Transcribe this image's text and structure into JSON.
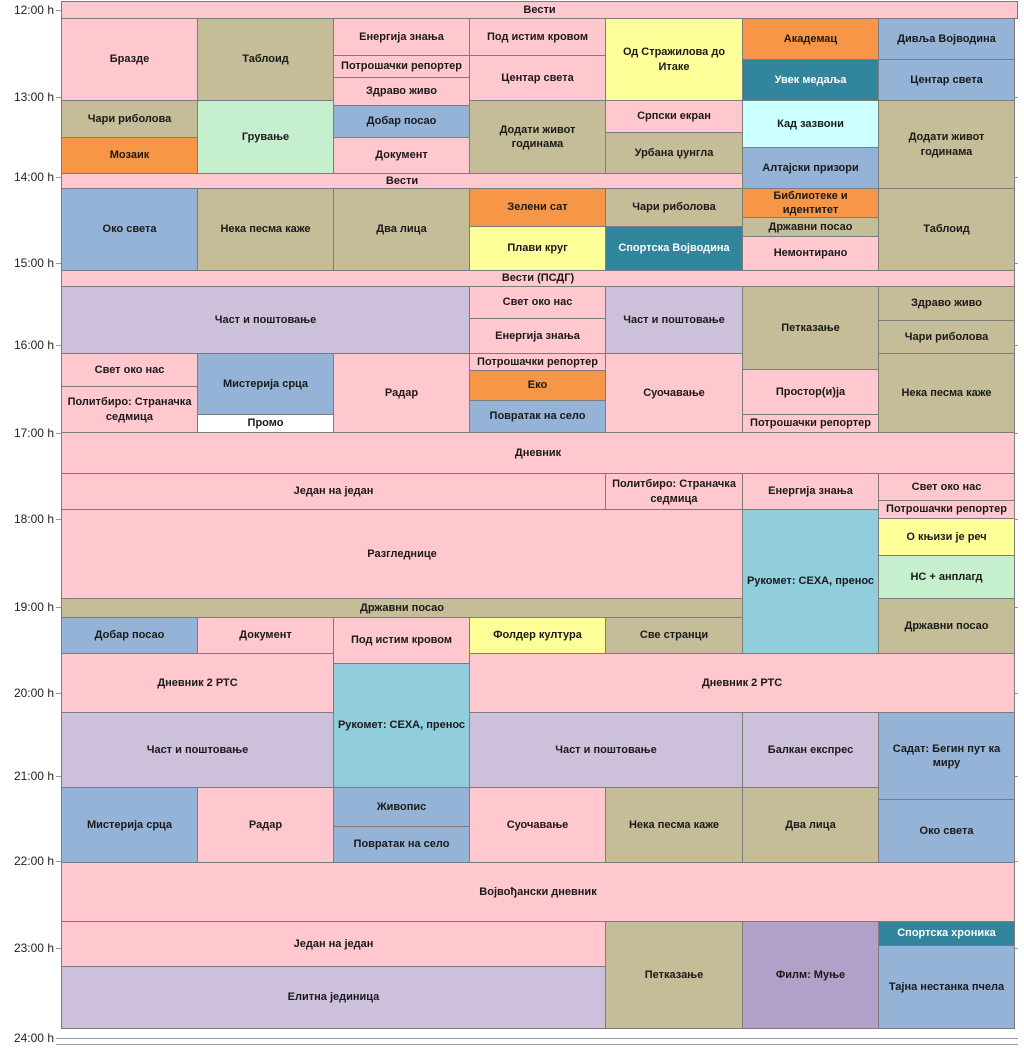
{
  "time_labels": [
    "12:00 h",
    "13:00 h",
    "14:00 h",
    "15:00 h",
    "16:00 h",
    "17:00 h",
    "18:00 h",
    "19:00 h",
    "20:00 h",
    "21:00 h",
    "22:00 h",
    "23:00 h",
    "24:00 h"
  ],
  "colors": {
    "pink": "#ffc7ce",
    "khaki": "#c4bd97",
    "blue": "#95b3d7",
    "orange": "#f79646",
    "yellow": "#ffff99",
    "teal": "#31859c",
    "lavender": "#ccc0da",
    "mint": "#c6efce",
    "light_cyan": "#ccffff",
    "cyan": "#92cddc",
    "purple": "#b1a0c7",
    "white": "#ffffff"
  },
  "programs": [
    {
      "title": "Вести",
      "color": "pink"
    },
    {
      "title": "Бразде",
      "color": "pink"
    },
    {
      "title": "Таблоид",
      "color": "khaki"
    },
    {
      "title": "Енергија знања",
      "color": "pink"
    },
    {
      "title": "Потрошачки репортер",
      "color": "pink"
    },
    {
      "title": "Здраво живо",
      "color": "pink"
    },
    {
      "title": "Под истим кровом",
      "color": "pink"
    },
    {
      "title": "Центар света",
      "color": "pink"
    },
    {
      "title": "Од Стражилова до Итаке",
      "color": "yellow"
    },
    {
      "title": "Академац",
      "color": "orange"
    },
    {
      "title": "Увек медаља",
      "color": "teal"
    },
    {
      "title": "Дивља Војводина",
      "color": "blue"
    },
    {
      "title": "Центар света",
      "color": "blue"
    },
    {
      "title": "Чари риболова",
      "color": "khaki"
    },
    {
      "title": "Мозаик",
      "color": "orange"
    },
    {
      "title": "Грување",
      "color": "mint"
    },
    {
      "title": "Добар посао",
      "color": "blue"
    },
    {
      "title": "Документ",
      "color": "pink"
    },
    {
      "title": "Додати живот годинама",
      "color": "khaki"
    },
    {
      "title": "Српски екран",
      "color": "pink"
    },
    {
      "title": "Урбана џунгла",
      "color": "khaki"
    },
    {
      "title": "Кад зазвони",
      "color": "light_cyan"
    },
    {
      "title": "Алтајски призори",
      "color": "blue"
    },
    {
      "title": "Додати живот годинама",
      "color": "khaki"
    },
    {
      "title": "Вести",
      "color": "pink"
    },
    {
      "title": "Око света",
      "color": "blue"
    },
    {
      "title": "Нека песма каже",
      "color": "khaki"
    },
    {
      "title": "Два лица",
      "color": "khaki"
    },
    {
      "title": "Зелени сат",
      "color": "orange"
    },
    {
      "title": "Плави круг",
      "color": "yellow"
    },
    {
      "title": "Чари риболова",
      "color": "khaki"
    },
    {
      "title": "Спортска Војводина",
      "color": "teal"
    },
    {
      "title": "Библиотеке и идентитет",
      "color": "orange"
    },
    {
      "title": "Државни посао",
      "color": "khaki"
    },
    {
      "title": "Немонтирано",
      "color": "pink"
    },
    {
      "title": "Таблоид",
      "color": "khaki"
    },
    {
      "title": "Вести (ПСДГ)",
      "color": "pink"
    },
    {
      "title": "Част и поштовање",
      "color": "lavender"
    },
    {
      "title": "Свет око нас",
      "color": "pink"
    },
    {
      "title": "Енергија знања",
      "color": "pink"
    },
    {
      "title": "Част и поштовање",
      "color": "lavender"
    },
    {
      "title": "Петказање",
      "color": "khaki"
    },
    {
      "title": "Здраво живо",
      "color": "khaki"
    },
    {
      "title": "Чари риболова",
      "color": "khaki"
    },
    {
      "title": "Свет око нас",
      "color": "pink"
    },
    {
      "title": "Политбиро: Страначка седмица",
      "color": "pink"
    },
    {
      "title": "Мистерија срца",
      "color": "blue"
    },
    {
      "title": "Промо",
      "color": "white"
    },
    {
      "title": "Радар",
      "color": "pink"
    },
    {
      "title": "Потрошачки репортер",
      "color": "pink"
    },
    {
      "title": "Еко",
      "color": "orange"
    },
    {
      "title": "Повратак на село",
      "color": "blue"
    },
    {
      "title": "Суочавање",
      "color": "pink"
    },
    {
      "title": "Простор(и)ја",
      "color": "pink"
    },
    {
      "title": "Потрошачки репортер",
      "color": "pink"
    },
    {
      "title": "Нека песма каже",
      "color": "khaki"
    },
    {
      "title": "Дневник",
      "color": "pink"
    },
    {
      "title": "Један на један",
      "color": "pink"
    },
    {
      "title": "Политбиро: Страначка седмица",
      "color": "pink"
    },
    {
      "title": "Енергија знања",
      "color": "pink"
    },
    {
      "title": "Свет око нас",
      "color": "pink"
    },
    {
      "title": "Потрошачки репортер",
      "color": "pink"
    },
    {
      "title": "Разгледнице",
      "color": "pink"
    },
    {
      "title": "Рукомет: СЕХА, пренос",
      "color": "cyan"
    },
    {
      "title": "О књизи је реч",
      "color": "yellow"
    },
    {
      "title": "НС + анплагд",
      "color": "mint"
    },
    {
      "title": "Државни посао",
      "color": "khaki"
    },
    {
      "title": "Добар посао",
      "color": "blue"
    },
    {
      "title": "Документ",
      "color": "pink"
    },
    {
      "title": "Под истим кровом",
      "color": "pink"
    },
    {
      "title": "Фолдер култура",
      "color": "yellow"
    },
    {
      "title": "Све странци",
      "color": "khaki"
    },
    {
      "title": "Државни посао",
      "color": "khaki"
    },
    {
      "title": "Дневник 2 РТС",
      "color": "pink"
    },
    {
      "title": "Рукомет: СЕХА, пренос",
      "color": "cyan"
    },
    {
      "title": "Дневник 2 РТС",
      "color": "pink"
    },
    {
      "title": "Част и поштовање",
      "color": "lavender"
    },
    {
      "title": "Част и поштовање",
      "color": "lavender"
    },
    {
      "title": "Балкан експрес",
      "color": "lavender"
    },
    {
      "title": "Садат: Бегин пут ка миру",
      "color": "blue"
    },
    {
      "title": "Мистерија срца",
      "color": "blue"
    },
    {
      "title": "Радар",
      "color": "pink"
    },
    {
      "title": "Живопис",
      "color": "blue"
    },
    {
      "title": "Повратак на село",
      "color": "blue"
    },
    {
      "title": "Суочавање",
      "color": "pink"
    },
    {
      "title": "Нека песма каже",
      "color": "khaki"
    },
    {
      "title": "Два лица",
      "color": "khaki"
    },
    {
      "title": "Око света",
      "color": "blue"
    },
    {
      "title": "Војвођански дневник",
      "color": "pink"
    },
    {
      "title": "Један на један",
      "color": "pink"
    },
    {
      "title": "Елитна јединица",
      "color": "lavender"
    },
    {
      "title": "Петказање",
      "color": "khaki"
    },
    {
      "title": "Филм: Муње",
      "color": "purple"
    },
    {
      "title": "Спортска хроника",
      "color": "teal"
    },
    {
      "title": "Тајна нестанка пчела",
      "color": "blue"
    }
  ]
}
